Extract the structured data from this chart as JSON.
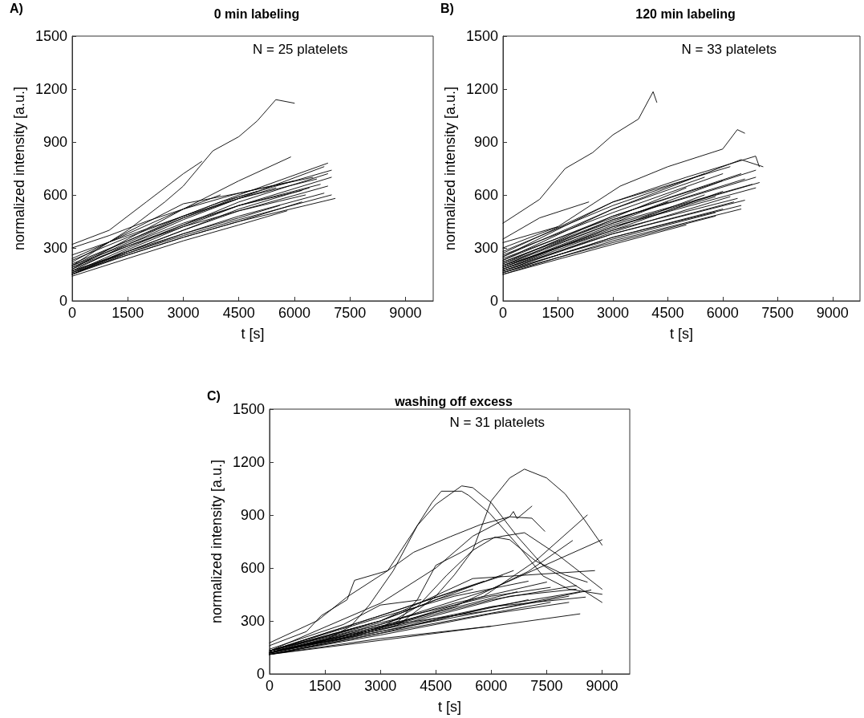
{
  "chart_data": [
    {
      "type": "line",
      "title": "0 min labeling",
      "xlabel": "t [s]",
      "ylabel": "normalized intensity [a.u.]",
      "annotations": [
        "A)",
        "N = 25 platelets"
      ],
      "xlim": [
        0,
        9750
      ],
      "ylim": [
        0,
        1500
      ],
      "xticks": [
        0,
        1500,
        3000,
        4500,
        6000,
        7500,
        9000
      ],
      "yticks": [
        0,
        300,
        600,
        900,
        1200,
        1500
      ],
      "series": [
        {
          "color": "#000000",
          "x": [
            0,
            1500,
            2500,
            3000,
            3800,
            4500,
            5000,
            5500,
            6000
          ],
          "values": [
            200,
            400,
            560,
            650,
            850,
            930,
            1020,
            1140,
            1120
          ]
        },
        {
          "color": "#000000",
          "x": [
            0,
            1000,
            2000,
            3000,
            3500
          ],
          "values": [
            320,
            400,
            560,
            720,
            790
          ]
        },
        {
          "color": "#000000",
          "x": [
            0,
            1500,
            3000,
            4500,
            5900
          ],
          "values": [
            180,
            350,
            520,
            680,
            815
          ]
        },
        {
          "color": "#000000",
          "x": [
            0,
            1500,
            3000,
            4500,
            6900
          ],
          "values": [
            200,
            340,
            480,
            600,
            780
          ]
        },
        {
          "color": "#000000",
          "x": [
            0,
            1500,
            3000,
            4500,
            6800
          ],
          "values": [
            170,
            320,
            460,
            580,
            760
          ]
        },
        {
          "color": "#000000",
          "x": [
            0,
            1500,
            3000,
            4500,
            7000
          ],
          "values": [
            190,
            330,
            470,
            590,
            740
          ]
        },
        {
          "color": "#000000",
          "x": [
            0,
            1500,
            3000,
            4500,
            6900
          ],
          "values": [
            160,
            300,
            430,
            560,
            720
          ]
        },
        {
          "color": "#000000",
          "x": [
            0,
            1500,
            3000,
            4500,
            6500
          ],
          "values": [
            220,
            390,
            550,
            610,
            700
          ]
        },
        {
          "color": "#000000",
          "x": [
            0,
            1500,
            3000,
            4500,
            7000
          ],
          "values": [
            150,
            290,
            420,
            540,
            700
          ]
        },
        {
          "color": "#000000",
          "x": [
            0,
            1500,
            3000,
            4500,
            6000
          ],
          "values": [
            240,
            380,
            520,
            610,
            680
          ]
        },
        {
          "color": "#000000",
          "x": [
            0,
            1500,
            3000,
            4500,
            6700
          ],
          "values": [
            180,
            310,
            430,
            540,
            660
          ]
        },
        {
          "color": "#000000",
          "x": [
            0,
            1500,
            3000,
            4500,
            6400
          ],
          "values": [
            160,
            280,
            400,
            520,
            640
          ]
        },
        {
          "color": "#000000",
          "x": [
            0,
            1500,
            3000,
            4500,
            6200
          ],
          "values": [
            200,
            320,
            440,
            540,
            625
          ]
        },
        {
          "color": "#000000",
          "x": [
            0,
            1500,
            3000,
            4500,
            6800
          ],
          "values": [
            150,
            270,
            380,
            480,
            610
          ]
        },
        {
          "color": "#000000",
          "x": [
            0,
            1500,
            3000,
            4500,
            7000
          ],
          "values": [
            170,
            270,
            370,
            460,
            600
          ]
        },
        {
          "color": "#000000",
          "x": [
            0,
            1500,
            3000,
            4500,
            7100
          ],
          "values": [
            160,
            260,
            360,
            450,
            580
          ]
        },
        {
          "color": "#000000",
          "x": [
            0,
            1500,
            3000,
            4500,
            6200
          ],
          "values": [
            150,
            260,
            360,
            450,
            560
          ]
        },
        {
          "color": "#000000",
          "x": [
            0,
            1500,
            3000,
            4500,
            5800
          ],
          "values": [
            140,
            240,
            340,
            430,
            510
          ]
        },
        {
          "color": "#000000",
          "x": [
            0,
            1500,
            3000,
            4500,
            5500
          ],
          "values": [
            260,
            370,
            480,
            580,
            640
          ]
        },
        {
          "color": "#000000",
          "x": [
            0,
            1000,
            2000,
            3000,
            4000
          ],
          "values": [
            300,
            370,
            450,
            520,
            600
          ]
        },
        {
          "color": "#000000",
          "x": [
            0,
            1500,
            3000,
            4500,
            6600
          ],
          "values": [
            210,
            340,
            470,
            580,
            690
          ]
        },
        {
          "color": "#000000",
          "x": [
            0,
            1500,
            3000,
            4000,
            5000
          ],
          "values": [
            230,
            360,
            480,
            560,
            620
          ]
        },
        {
          "color": "#000000",
          "x": [
            0,
            1500,
            3000,
            4500,
            6300
          ],
          "values": [
            190,
            310,
            420,
            510,
            600
          ]
        },
        {
          "color": "#000000",
          "x": [
            0,
            1500,
            3000,
            4500,
            5600
          ],
          "values": [
            170,
            280,
            380,
            470,
            540
          ]
        },
        {
          "color": "#000000",
          "x": [
            0,
            1500,
            3000,
            4500,
            6900
          ],
          "values": [
            150,
            280,
            400,
            510,
            650
          ]
        }
      ]
    },
    {
      "type": "line",
      "title": "120 min labeling",
      "xlabel": "t [s]",
      "ylabel": "normalized intensity [a.u.]",
      "annotations": [
        "B)",
        "N = 33 platelets"
      ],
      "xlim": [
        0,
        9750
      ],
      "ylim": [
        0,
        1500
      ],
      "xticks": [
        0,
        1500,
        3000,
        4500,
        6000,
        7500,
        9000
      ],
      "yticks": [
        0,
        300,
        600,
        900,
        1200,
        1500
      ],
      "series": [
        {
          "color": "#000000",
          "x": [
            0,
            1000,
            1700,
            2450,
            3000,
            3700,
            4100,
            4200
          ],
          "values": [
            440,
            575,
            750,
            840,
            940,
            1030,
            1185,
            1125
          ]
        },
        {
          "color": "#000000",
          "x": [
            0,
            1000,
            2340
          ],
          "values": [
            350,
            470,
            560
          ]
        },
        {
          "color": "#000000",
          "x": [
            0,
            1500,
            3200,
            4500,
            6000,
            6400,
            6600
          ],
          "values": [
            300,
            420,
            650,
            760,
            860,
            970,
            950
          ]
        },
        {
          "color": "#000000",
          "x": [
            0,
            3000,
            5000,
            6900,
            7000
          ],
          "values": [
            250,
            560,
            700,
            820,
            760
          ]
        },
        {
          "color": "#000000",
          "x": [
            0,
            3000,
            6500,
            7100
          ],
          "values": [
            230,
            520,
            800,
            760
          ]
        },
        {
          "color": "#000000",
          "x": [
            0,
            3000,
            6900
          ],
          "values": [
            210,
            480,
            740
          ]
        },
        {
          "color": "#000000",
          "x": [
            0,
            3000,
            6900
          ],
          "values": [
            200,
            460,
            700
          ]
        },
        {
          "color": "#000000",
          "x": [
            0,
            3000,
            7000
          ],
          "values": [
            190,
            430,
            670
          ]
        },
        {
          "color": "#000000",
          "x": [
            0,
            3000,
            6900
          ],
          "values": [
            180,
            420,
            640
          ]
        },
        {
          "color": "#000000",
          "x": [
            0,
            3000,
            6400
          ],
          "values": [
            200,
            400,
            580
          ]
        },
        {
          "color": "#000000",
          "x": [
            0,
            3000,
            6300
          ],
          "values": [
            170,
            380,
            560
          ]
        },
        {
          "color": "#000000",
          "x": [
            0,
            3000,
            6500
          ],
          "values": [
            160,
            360,
            540
          ]
        },
        {
          "color": "#000000",
          "x": [
            0,
            3000,
            6500
          ],
          "values": [
            150,
            340,
            520
          ]
        },
        {
          "color": "#000000",
          "x": [
            0,
            3000,
            5800
          ],
          "values": [
            170,
            350,
            500
          ]
        },
        {
          "color": "#000000",
          "x": [
            0,
            3000,
            5800
          ],
          "values": [
            160,
            330,
            480
          ]
        },
        {
          "color": "#000000",
          "x": [
            0,
            3000,
            5500
          ],
          "values": [
            280,
            540,
            720
          ]
        },
        {
          "color": "#000000",
          "x": [
            0,
            3000,
            6000
          ],
          "values": [
            260,
            500,
            720
          ]
        },
        {
          "color": "#000000",
          "x": [
            0,
            3000,
            5000
          ],
          "values": [
            240,
            470,
            640
          ]
        },
        {
          "color": "#000000",
          "x": [
            0,
            3000,
            6000
          ],
          "values": [
            220,
            450,
            680
          ]
        },
        {
          "color": "#000000",
          "x": [
            0,
            3000,
            5500
          ],
          "values": [
            190,
            410,
            600
          ]
        },
        {
          "color": "#000000",
          "x": [
            0,
            3000,
            6000
          ],
          "values": [
            180,
            400,
            620
          ]
        },
        {
          "color": "#000000",
          "x": [
            0,
            3000,
            5000
          ],
          "values": [
            150,
            320,
            430
          ]
        },
        {
          "color": "#000000",
          "x": [
            0,
            1500
          ],
          "values": [
            330,
            420
          ]
        },
        {
          "color": "#000000",
          "x": [
            0,
            3000,
            6800
          ],
          "values": [
            210,
            440,
            660
          ]
        },
        {
          "color": "#000000",
          "x": [
            0,
            3000,
            6500
          ],
          "values": [
            230,
            480,
            720
          ]
        },
        {
          "color": "#000000",
          "x": [
            0,
            3000,
            6200
          ],
          "values": [
            170,
            390,
            590
          ]
        },
        {
          "color": "#000000",
          "x": [
            0,
            3000,
            4500
          ],
          "values": [
            200,
            440,
            560
          ]
        },
        {
          "color": "#000000",
          "x": [
            0,
            3000,
            5500
          ],
          "values": [
            250,
            520,
            700
          ]
        },
        {
          "color": "#000000",
          "x": [
            0,
            3000,
            6000
          ],
          "values": [
            160,
            360,
            520
          ]
        },
        {
          "color": "#000000",
          "x": [
            0,
            3000,
            6600
          ],
          "values": [
            180,
            380,
            570
          ]
        },
        {
          "color": "#000000",
          "x": [
            0,
            3000,
            6600
          ],
          "values": [
            220,
            460,
            690
          ]
        },
        {
          "color": "#000000",
          "x": [
            0,
            3000,
            5800
          ],
          "values": [
            190,
            420,
            590
          ]
        },
        {
          "color": "#000000",
          "x": [
            0,
            3000,
            6200
          ],
          "values": [
            270,
            560,
            760
          ]
        }
      ]
    },
    {
      "type": "line",
      "title": "washing off excess",
      "xlabel": "t [s]",
      "ylabel": "normalized intensity [a.u.]",
      "annotations": [
        "C)",
        "N = 31 platelets"
      ],
      "xlim": [
        0,
        9750
      ],
      "ylim": [
        0,
        1500
      ],
      "xticks": [
        0,
        1500,
        3000,
        4500,
        6000,
        7500,
        9000
      ],
      "yticks": [
        0,
        300,
        600,
        900,
        1200,
        1500
      ],
      "series": [
        {
          "color": "#000000",
          "x": [
            0,
            2000,
            3500,
            4500,
            5000,
            5500,
            6000,
            6500,
            6900,
            7500,
            8000,
            8500,
            9000
          ],
          "values": [
            130,
            200,
            280,
            440,
            560,
            700,
            980,
            1110,
            1160,
            1110,
            1020,
            880,
            730
          ]
        },
        {
          "color": "#000000",
          "x": [
            0,
            1500,
            2200,
            2700,
            3350,
            4000,
            4500,
            5200,
            5500,
            6000,
            6700,
            7400,
            8100,
            9000
          ],
          "values": [
            120,
            190,
            270,
            390,
            585,
            840,
            960,
            1065,
            1055,
            970,
            780,
            615,
            525,
            405
          ]
        },
        {
          "color": "#000000",
          "x": [
            0,
            1300,
            2100,
            3200,
            3900,
            4400,
            4650,
            5200,
            5400,
            5950,
            6700,
            7400,
            8100,
            9000
          ],
          "values": [
            176,
            302,
            436,
            585,
            808,
            972,
            1035,
            1035,
            1010,
            912,
            734,
            555,
            480,
            451
          ]
        },
        {
          "color": "#000000",
          "x": [
            0,
            1000,
            1400,
            2100,
            2300,
            3200,
            3900,
            4900,
            5700,
            6500,
            7100,
            7450
          ],
          "values": [
            160,
            240,
            330,
            420,
            530,
            585,
            689,
            778,
            845,
            890,
            882,
            808
          ]
        },
        {
          "color": "#000000",
          "x": [
            0,
            3000,
            4500,
            5500,
            6500,
            6600,
            6700,
            7100
          ],
          "values": [
            130,
            400,
            600,
            780,
            890,
            920,
            880,
            950
          ]
        },
        {
          "color": "#000000",
          "x": [
            0,
            2000,
            3500,
            4000,
            4500,
            5200,
            5800,
            6300,
            6900,
            7800,
            9000
          ],
          "values": [
            120,
            200,
            300,
            420,
            615,
            690,
            760,
            780,
            800,
            675,
            480
          ]
        },
        {
          "color": "#000000",
          "x": [
            0,
            3000,
            4000,
            4800,
            5500,
            6100,
            6500,
            7200,
            8000,
            8600
          ],
          "values": [
            120,
            260,
            380,
            560,
            700,
            775,
            760,
            640,
            560,
            520
          ]
        },
        {
          "color": "#000000",
          "x": [
            0,
            3000,
            5800,
            7200,
            8600
          ],
          "values": [
            120,
            260,
            440,
            640,
            900
          ]
        },
        {
          "color": "#000000",
          "x": [
            0,
            3000,
            6000,
            9000
          ],
          "values": [
            130,
            280,
            480,
            760
          ]
        },
        {
          "color": "#000000",
          "x": [
            0,
            3000,
            5000,
            7000,
            8200
          ],
          "values": [
            120,
            260,
            380,
            580,
            755
          ]
        },
        {
          "color": "#000000",
          "x": [
            0,
            3000,
            5500,
            8800
          ],
          "values": [
            130,
            300,
            540,
            585
          ]
        },
        {
          "color": "#000000",
          "x": [
            0,
            3000,
            6000,
            8300
          ],
          "values": [
            120,
            260,
            420,
            500
          ]
        },
        {
          "color": "#000000",
          "x": [
            0,
            3000,
            6000,
            8400
          ],
          "values": [
            110,
            230,
            380,
            465
          ]
        },
        {
          "color": "#000000",
          "x": [
            0,
            3000,
            6000,
            8100
          ],
          "values": [
            110,
            220,
            340,
            405
          ]
        },
        {
          "color": "#000000",
          "x": [
            0,
            3000,
            6000,
            8400
          ],
          "values": [
            110,
            200,
            270,
            340
          ]
        },
        {
          "color": "#000000",
          "x": [
            0,
            3000,
            6000,
            8550
          ],
          "values": [
            120,
            250,
            380,
            435
          ]
        },
        {
          "color": "#000000",
          "x": [
            0,
            3000,
            6000,
            7600
          ],
          "values": [
            130,
            290,
            440,
            490
          ]
        },
        {
          "color": "#000000",
          "x": [
            0,
            3000,
            5000,
            7000
          ],
          "values": [
            130,
            320,
            440,
            525
          ]
        },
        {
          "color": "#000000",
          "x": [
            0,
            2000,
            3000,
            4100
          ],
          "values": [
            140,
            280,
            390,
            420
          ]
        },
        {
          "color": "#000000",
          "x": [
            0,
            3000,
            5000,
            6600
          ],
          "values": [
            120,
            300,
            460,
            585
          ]
        },
        {
          "color": "#000000",
          "x": [
            0,
            3000,
            6000
          ],
          "values": [
            110,
            190,
            270
          ]
        },
        {
          "color": "#000000",
          "x": [
            0,
            3000,
            6000,
            8100
          ],
          "values": [
            120,
            270,
            360,
            440
          ]
        },
        {
          "color": "#000000",
          "x": [
            0,
            3000,
            6300
          ],
          "values": [
            130,
            330,
            555
          ]
        },
        {
          "color": "#000000",
          "x": [
            0,
            3000,
            7600
          ],
          "values": [
            110,
            230,
            405
          ]
        },
        {
          "color": "#000000",
          "x": [
            0,
            3000,
            6000,
            8700
          ],
          "values": [
            120,
            240,
            360,
            475
          ]
        },
        {
          "color": "#000000",
          "x": [
            0,
            3000,
            6700
          ],
          "values": [
            120,
            270,
            465
          ]
        },
        {
          "color": "#000000",
          "x": [
            0,
            3000,
            5800
          ],
          "values": [
            130,
            330,
            525
          ]
        },
        {
          "color": "#000000",
          "x": [
            0,
            3000,
            7000
          ],
          "values": [
            110,
            240,
            420
          ]
        },
        {
          "color": "#000000",
          "x": [
            0,
            3000,
            4500,
            5500
          ],
          "values": [
            130,
            300,
            420,
            480
          ]
        },
        {
          "color": "#000000",
          "x": [
            0,
            3000,
            5000,
            7500
          ],
          "values": [
            120,
            280,
            400,
            520
          ]
        },
        {
          "color": "#000000",
          "x": [
            0,
            3000,
            6500,
            8300
          ],
          "values": [
            115,
            250,
            440,
            480
          ]
        }
      ]
    }
  ]
}
